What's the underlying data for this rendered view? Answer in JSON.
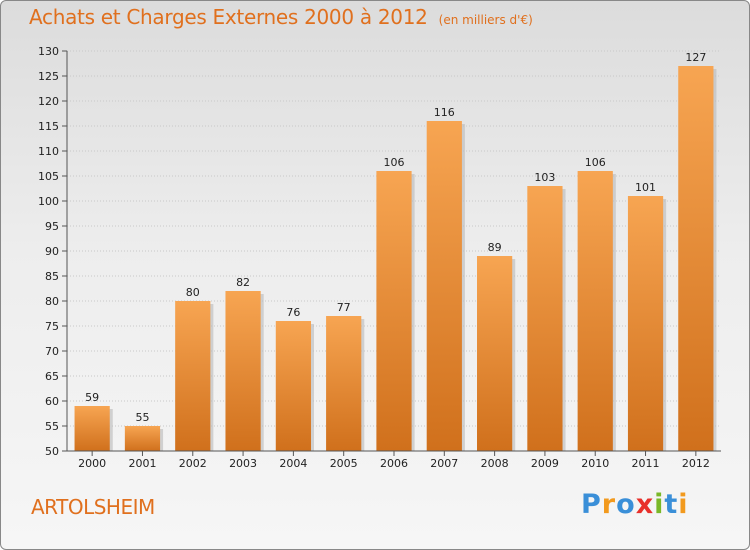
{
  "header": {
    "title": "Achats et Charges Externes 2000 à 2012",
    "unit": "(en milliers d'€)"
  },
  "footer": {
    "town": "ARTOLSHEIM",
    "brand_letters": [
      {
        "ch": "P",
        "color": "#3a8fd8"
      },
      {
        "ch": "r",
        "color": "#f29a1e"
      },
      {
        "ch": "o",
        "color": "#3a8fd8"
      },
      {
        "ch": "x",
        "color": "#e8302a"
      },
      {
        "ch": "i",
        "color": "#7ab828"
      },
      {
        "ch": "t",
        "color": "#3a8fd8"
      },
      {
        "ch": "i",
        "color": "#f29a1e"
      }
    ]
  },
  "chart_data": {
    "type": "bar",
    "categories": [
      "2000",
      "2001",
      "2002",
      "2003",
      "2004",
      "2005",
      "2006",
      "2007",
      "2008",
      "2009",
      "2010",
      "2011",
      "2012"
    ],
    "values": [
      59,
      55,
      80,
      82,
      76,
      77,
      106,
      116,
      89,
      103,
      106,
      101,
      127
    ],
    "ylim": [
      50,
      130
    ],
    "yticks": [
      50,
      55,
      60,
      65,
      70,
      75,
      80,
      85,
      90,
      95,
      100,
      105,
      110,
      115,
      120,
      125,
      130
    ],
    "grid": true,
    "colors": {
      "bar_light": "#f7a552",
      "bar_dark": "#d0701c",
      "accent": "#e0701e"
    }
  }
}
